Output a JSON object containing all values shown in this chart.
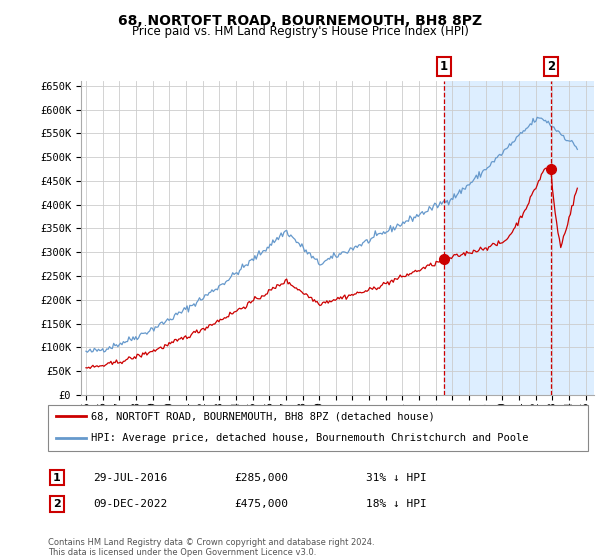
{
  "title": "68, NORTOFT ROAD, BOURNEMOUTH, BH8 8PZ",
  "subtitle": "Price paid vs. HM Land Registry's House Price Index (HPI)",
  "property_label": "68, NORTOFT ROAD, BOURNEMOUTH, BH8 8PZ (detached house)",
  "hpi_label": "HPI: Average price, detached house, Bournemouth Christchurch and Poole",
  "transaction1_date": "29-JUL-2016",
  "transaction1_price": 285000,
  "transaction1_note": "31% ↓ HPI",
  "transaction2_date": "09-DEC-2022",
  "transaction2_price": 475000,
  "transaction2_note": "18% ↓ HPI",
  "footnote": "Contains HM Land Registry data © Crown copyright and database right 2024.\nThis data is licensed under the Open Government Licence v3.0.",
  "property_color": "#cc0000",
  "hpi_color": "#6699cc",
  "shade_color": "#ddeeff",
  "marker_color": "#cc0000",
  "ylim_min": 0,
  "ylim_max": 660000,
  "ytick_step": 50000,
  "x_start_year": 1995,
  "x_end_year": 2025
}
